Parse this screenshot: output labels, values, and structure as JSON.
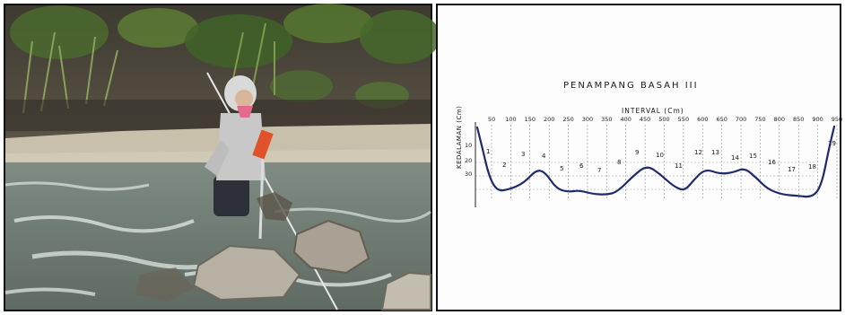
{
  "sketch": {
    "title": "PENAMPANG BASAH III",
    "x_axis_label": "INTERVAL (Cm)",
    "y_axis_label": "KEDALAMAN (Cm)",
    "interval_ticks": [
      "50",
      "100",
      "150",
      "200",
      "250",
      "300",
      "350",
      "400",
      "450",
      "500",
      "550",
      "600",
      "650",
      "700",
      "750",
      "800",
      "850",
      "900",
      "950"
    ],
    "depth_ticks": [
      "10",
      "20",
      "30"
    ],
    "section_labels": [
      "1",
      "2",
      "3",
      "4",
      "5",
      "6",
      "7",
      "8",
      "9",
      "10",
      "11",
      "12",
      "13",
      "14",
      "15",
      "16",
      "17",
      "18",
      "19"
    ],
    "line_color": "#1f2a6b"
  }
}
